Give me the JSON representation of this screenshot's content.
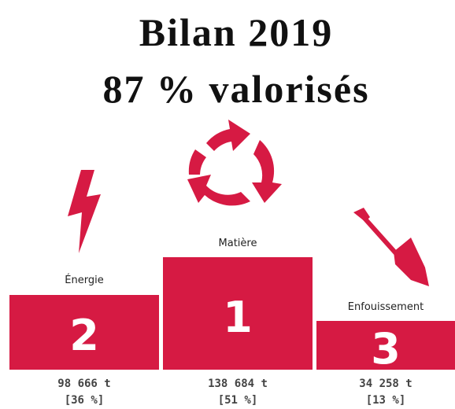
{
  "header": {
    "title": [
      "Bilan 2019",
      "87 % valorisés"
    ]
  },
  "podium": [
    {
      "label": "Énergie",
      "rank": 2,
      "amount": "98 666 t",
      "share": "[36 %]"
    },
    {
      "label": "Matière",
      "rank": 1,
      "amount": "138 684 t",
      "share": "[51 %]"
    },
    {
      "label": "Enfouissement",
      "rank": 3,
      "amount": "34 258 t",
      "share": "[13 %]"
    }
  ]
}
